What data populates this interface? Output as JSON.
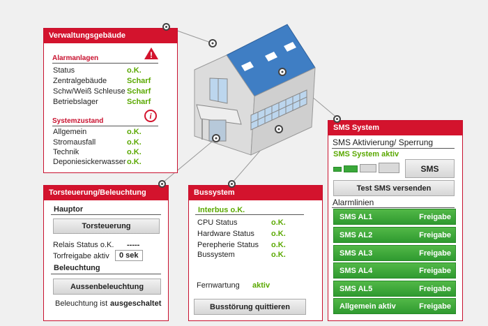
{
  "verwaltung": {
    "title": "Verwaltungsgebäude",
    "alarm_heading": "Alarmanlagen",
    "alarm_rows": [
      {
        "label": "Status",
        "value": "o.K."
      },
      {
        "label": "Zentralgebäude",
        "value": "Scharf"
      },
      {
        "label": "Schw/Weiß Schleuse",
        "value": "Scharf"
      },
      {
        "label": "Betriebslager",
        "value": "Scharf"
      }
    ],
    "system_heading": "Systemzustand",
    "system_rows": [
      {
        "label": "Allgemein",
        "value": "o.K."
      },
      {
        "label": "Stromausfall",
        "value": "o.K."
      },
      {
        "label": "Technik",
        "value": "o.K."
      },
      {
        "label": "Deponiesickerwasser",
        "value": "o.K."
      }
    ],
    "info_glyph": "i",
    "warn_glyph": "!"
  },
  "tor": {
    "title": "Torsteuerung/Beleuchtung",
    "hauptor_heading": "Hauptor",
    "torsteuerung_button": "Torsteuerung",
    "relais_label": "Relais Status o.K.",
    "relais_value": "-----",
    "torfreigabe_label": "Torfreigabe aktiv",
    "torfreigabe_value": "0 sek",
    "beleuchtung_heading": "Beleuchtung",
    "aussen_button": "Aussenbeleuchtung",
    "beleuchtung_label": "Beleuchtung ist",
    "beleuchtung_value": "ausgeschaltet"
  },
  "bus": {
    "title": "Bussystem",
    "interbus": "Interbus o.K.",
    "rows": [
      {
        "label": "CPU Status",
        "value": "o.K."
      },
      {
        "label": "Hardware Status",
        "value": "o.K."
      },
      {
        "label": "Perepherie Status",
        "value": "o.K."
      },
      {
        "label": "Bussystem",
        "value": "o.K."
      }
    ],
    "fernwartung_label": "Fernwartung",
    "fernwartung_value": "aktiv",
    "quit_button": "Busstörung quittieren"
  },
  "sms": {
    "title": "SMS System",
    "activation_heading": "SMS Aktivierung/ Sperrung",
    "status": "SMS System aktiv",
    "signal_level": 0.5,
    "sms_button": "SMS",
    "test_button": "Test SMS versenden",
    "alarm_heading": "Alarmlinien",
    "lines": [
      {
        "label": "SMS AL1",
        "state": "Freigabe"
      },
      {
        "label": "SMS AL2",
        "state": "Freigabe"
      },
      {
        "label": "SMS AL3",
        "state": "Freigabe"
      },
      {
        "label": "SMS AL4",
        "state": "Freigabe"
      },
      {
        "label": "SMS AL5",
        "state": "Freigabe"
      },
      {
        "label": "Allgemein aktiv",
        "state": "Freigabe"
      }
    ]
  },
  "colors": {
    "accent": "#d3132d",
    "ok_green": "#5aa800",
    "button_green": "#3aa83a",
    "roof_blue": "#3f7ec4"
  },
  "icons": {
    "warn": "warning-triangle-icon",
    "info": "info-circle-icon",
    "connector": "connector-dot-icon"
  }
}
